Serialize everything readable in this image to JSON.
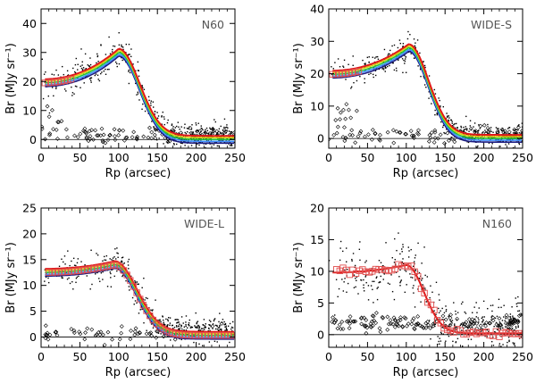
{
  "chart_data": [
    {
      "type": "scatter",
      "title": "N60",
      "xlabel": "Rp (arcsec)",
      "ylabel": "Br (MJy sr⁻¹)",
      "xlim": [
        0,
        250
      ],
      "ylim": [
        -3,
        45
      ],
      "xticks": [
        "0",
        "50",
        "100",
        "150",
        "200",
        "250"
      ],
      "yticks": [
        "0",
        "10",
        "20",
        "30",
        "40"
      ],
      "zero_line": true,
      "model": {
        "base": 19.5,
        "peak": 30,
        "peak_x": 100,
        "fall_width": 38,
        "tail": 0
      },
      "series": [
        {
          "name": "measured brightness (dots)",
          "spread": 3.0,
          "count": 520
        },
        {
          "name": "background pixels (diamonds)",
          "level": 1.5,
          "count": 130
        },
        {
          "name": "binned profile (squares)",
          "x_range": [
            5,
            40
          ]
        },
        {
          "name": "model profiles (colored curves)",
          "colors": [
            "#1a1a80",
            "#3d8fff",
            "#22c43a",
            "#e0d010",
            "#e01818"
          ]
        }
      ]
    },
    {
      "type": "scatter",
      "title": "WIDE-S",
      "xlabel": "Rp (arcsec)",
      "ylabel": "Br (MJy sr⁻¹)",
      "xlim": [
        0,
        250
      ],
      "ylim": [
        -3,
        40
      ],
      "xticks": [
        "0",
        "50",
        "100",
        "150",
        "200",
        "250"
      ],
      "yticks": [
        "0",
        "10",
        "20",
        "30",
        "40"
      ],
      "zero_line": true,
      "model": {
        "base": 19.8,
        "peak": 28,
        "peak_x": 103,
        "fall_width": 36,
        "tail": 0
      },
      "series": [
        {
          "name": "measured brightness (dots)",
          "spread": 2.2,
          "count": 520
        },
        {
          "name": "background pixels (diamonds)",
          "level": 1.0,
          "count": 120
        },
        {
          "name": "binned profile (squares)",
          "x_range": [
            5,
            40
          ]
        },
        {
          "name": "model profiles (colored curves)",
          "colors": [
            "#1a1a80",
            "#3d8fff",
            "#22c43a",
            "#e0d010",
            "#e01818"
          ]
        }
      ]
    },
    {
      "type": "scatter",
      "title": "WIDE-L",
      "xlabel": "Rp (arcsec)",
      "ylabel": "Br (MJy sr⁻¹)",
      "xlim": [
        0,
        250
      ],
      "ylim": [
        -2,
        25
      ],
      "xticks": [
        "0",
        "50",
        "100",
        "150",
        "200",
        "250"
      ],
      "yticks": [
        "0",
        "5",
        "10",
        "15",
        "20",
        "25"
      ],
      "zero_line": true,
      "model": {
        "base": 12.5,
        "peak": 14,
        "peak_x": 95,
        "fall_width": 40,
        "tail": 0.3
      },
      "series": [
        {
          "name": "measured brightness (dots)",
          "spread": 1.6,
          "count": 460
        },
        {
          "name": "background pixels (diamonds)",
          "level": 0.8,
          "count": 70
        },
        {
          "name": "binned profile (squares)",
          "x_range": [
            10,
            250
          ]
        },
        {
          "name": "model profiles (colored curves)",
          "colors": [
            "#1a1a80",
            "#3d8fff",
            "#22c43a",
            "#e0d010",
            "#e01818"
          ]
        }
      ]
    },
    {
      "type": "scatter",
      "title": "N160",
      "xlabel": "Rp (arcsec)",
      "ylabel": "Br (MJy sr⁻¹)",
      "xlim": [
        0,
        250
      ],
      "ylim": [
        -2,
        20
      ],
      "xticks": [
        "0",
        "50",
        "100",
        "150",
        "200",
        "250"
      ],
      "yticks": [
        "0",
        "5",
        "10",
        "15",
        "20"
      ],
      "zero_line": true,
      "model": {
        "base": 9.8,
        "peak": 11,
        "peak_x": 100,
        "fall_width": 32,
        "tail": 0.2
      },
      "series": [
        {
          "name": "measured brightness (dots)",
          "spread": 2.6,
          "count": 380
        },
        {
          "name": "background pixels (diamonds)",
          "level": 1.8,
          "count": 160
        },
        {
          "name": "binned profile (squares)",
          "x_range": [
            10,
            250
          ]
        },
        {
          "name": "model profiles (colored curves)",
          "colors": [
            "#e01818"
          ]
        }
      ]
    }
  ]
}
